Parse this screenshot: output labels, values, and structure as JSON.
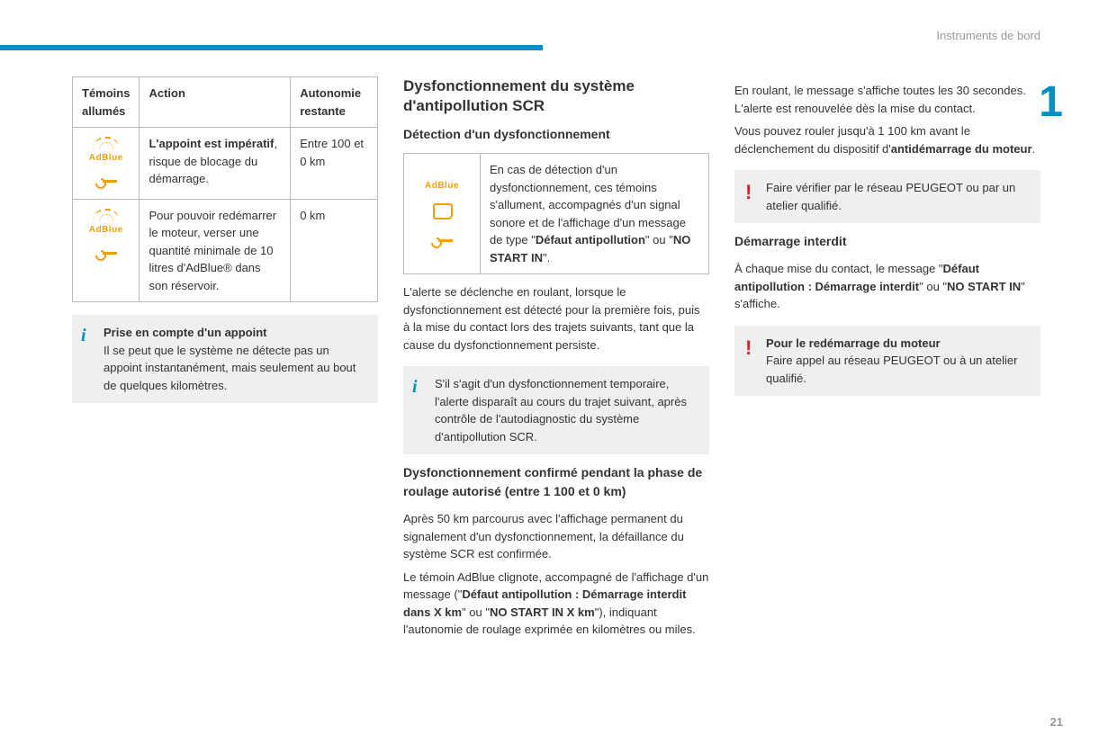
{
  "header": {
    "section": "Instruments de bord",
    "chapter": "1",
    "page_number": "21"
  },
  "col1": {
    "table": {
      "headers": [
        "Témoins allumés",
        "Action",
        "Autonomie restante"
      ],
      "rows": [
        {
          "action_bold": "L'appoint est impératif",
          "action_rest": ", risque de blocage du démarrage.",
          "range": "Entre 100 et 0 km"
        },
        {
          "action": "Pour pouvoir redémarrer le moteur, verser une quantité minimale de 10 litres d'AdBlue® dans son réservoir.",
          "range": "0 km"
        }
      ]
    },
    "info": {
      "title": "Prise en compte d'un appoint",
      "body": "Il se peut que le système ne détecte pas un appoint instantanément, mais seulement au bout de quelques kilomètres."
    }
  },
  "col2": {
    "h2": "Dysfonctionnement du système d'antipollution SCR",
    "h3a": "Détection d'un dysfonctionnement",
    "detect_box_pre": "En cas de détection d'un dysfonctionnement, ces témoins s'allument, accompagnés d'un signal sonore et de l'affichage d'un message de type \"",
    "detect_box_b1": "Défaut antipollution",
    "detect_box_mid": "\" ou \"",
    "detect_box_b2": "NO START IN",
    "detect_box_end": "\".",
    "para1": "L'alerte se déclenche en roulant, lorsque le dysfonctionnement est détecté pour la première fois, puis à la mise du contact lors des trajets suivants, tant que la cause du dysfonctionnement persiste.",
    "info_body": "S'il s'agit d'un dysfonctionnement temporaire, l'alerte disparaît au cours du trajet suivant, après contrôle de l'autodiagnostic du système d'antipollution SCR.",
    "h3b": "Dysfonctionnement confirmé pendant la phase de roulage autorisé (entre 1 100 et 0 km)",
    "para2a": "Après 50 km parcourus avec l'affichage permanent du signalement d'un dysfonctionnement, la défaillance du système SCR est confirmée.",
    "para2b_pre": "Le témoin AdBlue clignote, accompagné de l'affichage d'un message (\"",
    "para2b_b1": "Défaut antipollution : Démarrage interdit dans X km",
    "para2b_mid": "\" ou \"",
    "para2b_b2": "NO START IN X km",
    "para2b_end": "\"), indiquant l'autonomie de roulage exprimée en kilomètres ou miles."
  },
  "col3": {
    "para1_pre": "En roulant, le message s'affiche toutes les 30 secondes. L'alerte est renouvelée dès la mise du contact.",
    "para2_pre": "Vous pouvez rouler jusqu'à 1 100 km avant le déclenchement du dispositif d'",
    "para2_b": "antidémarrage du moteur",
    "para2_end": ".",
    "alert1": "Faire vérifier par le réseau PEUGEOT ou par un atelier qualifié.",
    "h3": "Démarrage interdit",
    "para3_pre": "À chaque mise du contact, le message \"",
    "para3_b1": "Défaut antipollution : Démarrage interdit",
    "para3_mid": "\" ou \"",
    "para3_b2": "NO START IN",
    "para3_end": "\" s'affiche.",
    "alert2_title": "Pour le redémarrage du moteur",
    "alert2_body": "Faire appel au réseau PEUGEOT ou à un atelier qualifié."
  }
}
